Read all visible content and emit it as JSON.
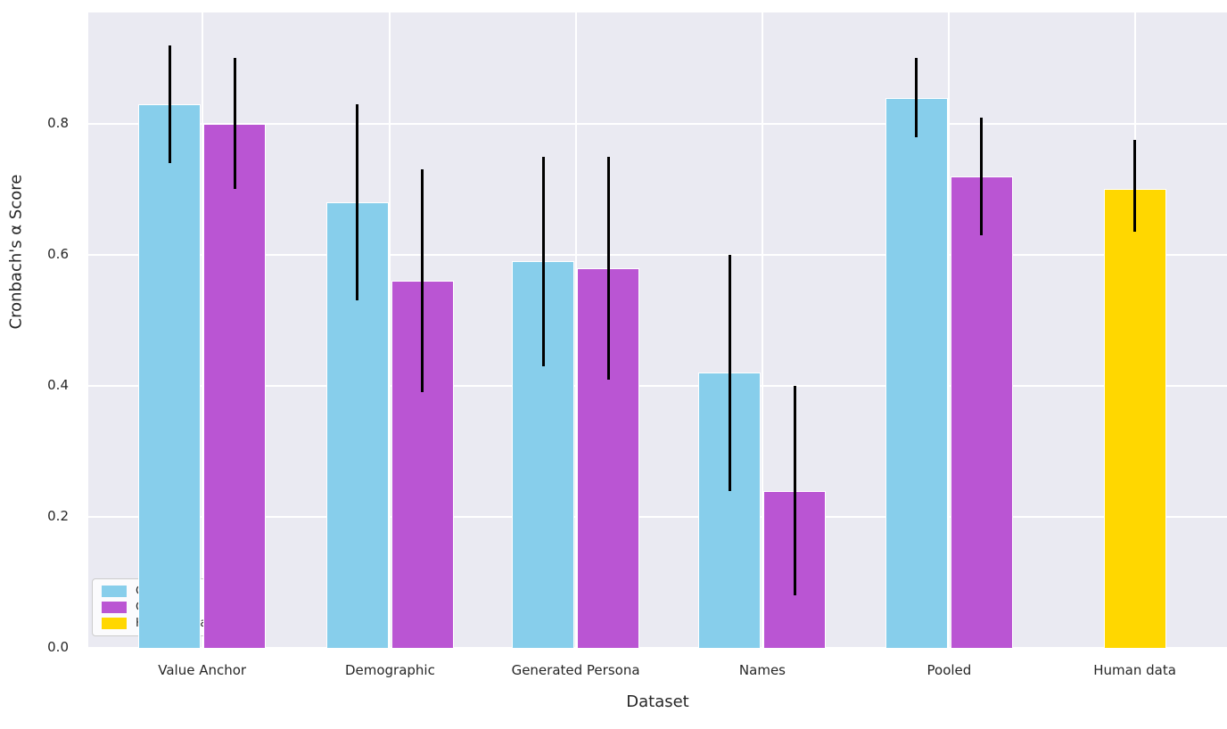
{
  "chart_data": {
    "type": "bar",
    "title": "",
    "xlabel": "Dataset",
    "ylabel": "Cronbach's α Score",
    "categories": [
      "Value Anchor",
      "Demographic",
      "Generated Persona",
      "Names",
      "Pooled",
      "Human data"
    ],
    "series": [
      {
        "name": "GPT 4",
        "color": "#87CEEB",
        "values": [
          0.83,
          0.68,
          0.59,
          0.42,
          0.84,
          null
        ],
        "err_lo": [
          0.74,
          0.53,
          0.43,
          0.24,
          0.78,
          null
        ],
        "err_hi": [
          0.92,
          0.83,
          0.75,
          0.6,
          0.9,
          null
        ]
      },
      {
        "name": "Gemini pro",
        "color": "#BA55D3",
        "values": [
          0.8,
          0.56,
          0.58,
          0.24,
          0.72,
          null
        ],
        "err_lo": [
          0.7,
          0.39,
          0.41,
          0.08,
          0.63,
          null
        ],
        "err_hi": [
          0.9,
          0.73,
          0.75,
          0.4,
          0.81,
          null
        ]
      },
      {
        "name": "Human data",
        "color": "#FFD700",
        "values": [
          null,
          null,
          null,
          null,
          null,
          0.7
        ],
        "err_lo": [
          null,
          null,
          null,
          null,
          null,
          0.635
        ],
        "err_hi": [
          null,
          null,
          null,
          null,
          null,
          0.775
        ]
      }
    ],
    "yticks": [
      0.0,
      0.2,
      0.4,
      0.6,
      0.8
    ],
    "ytick_labels": [
      "0.0",
      "0.2",
      "0.4",
      "0.6",
      "0.8"
    ],
    "ylim": [
      0,
      0.97
    ],
    "grid": true,
    "legend_position": "lower left",
    "plot_bg_color": "#eaeaf2",
    "grid_color": "#ffffff",
    "errorbar_color": "#000000",
    "text_color": "#262626"
  }
}
